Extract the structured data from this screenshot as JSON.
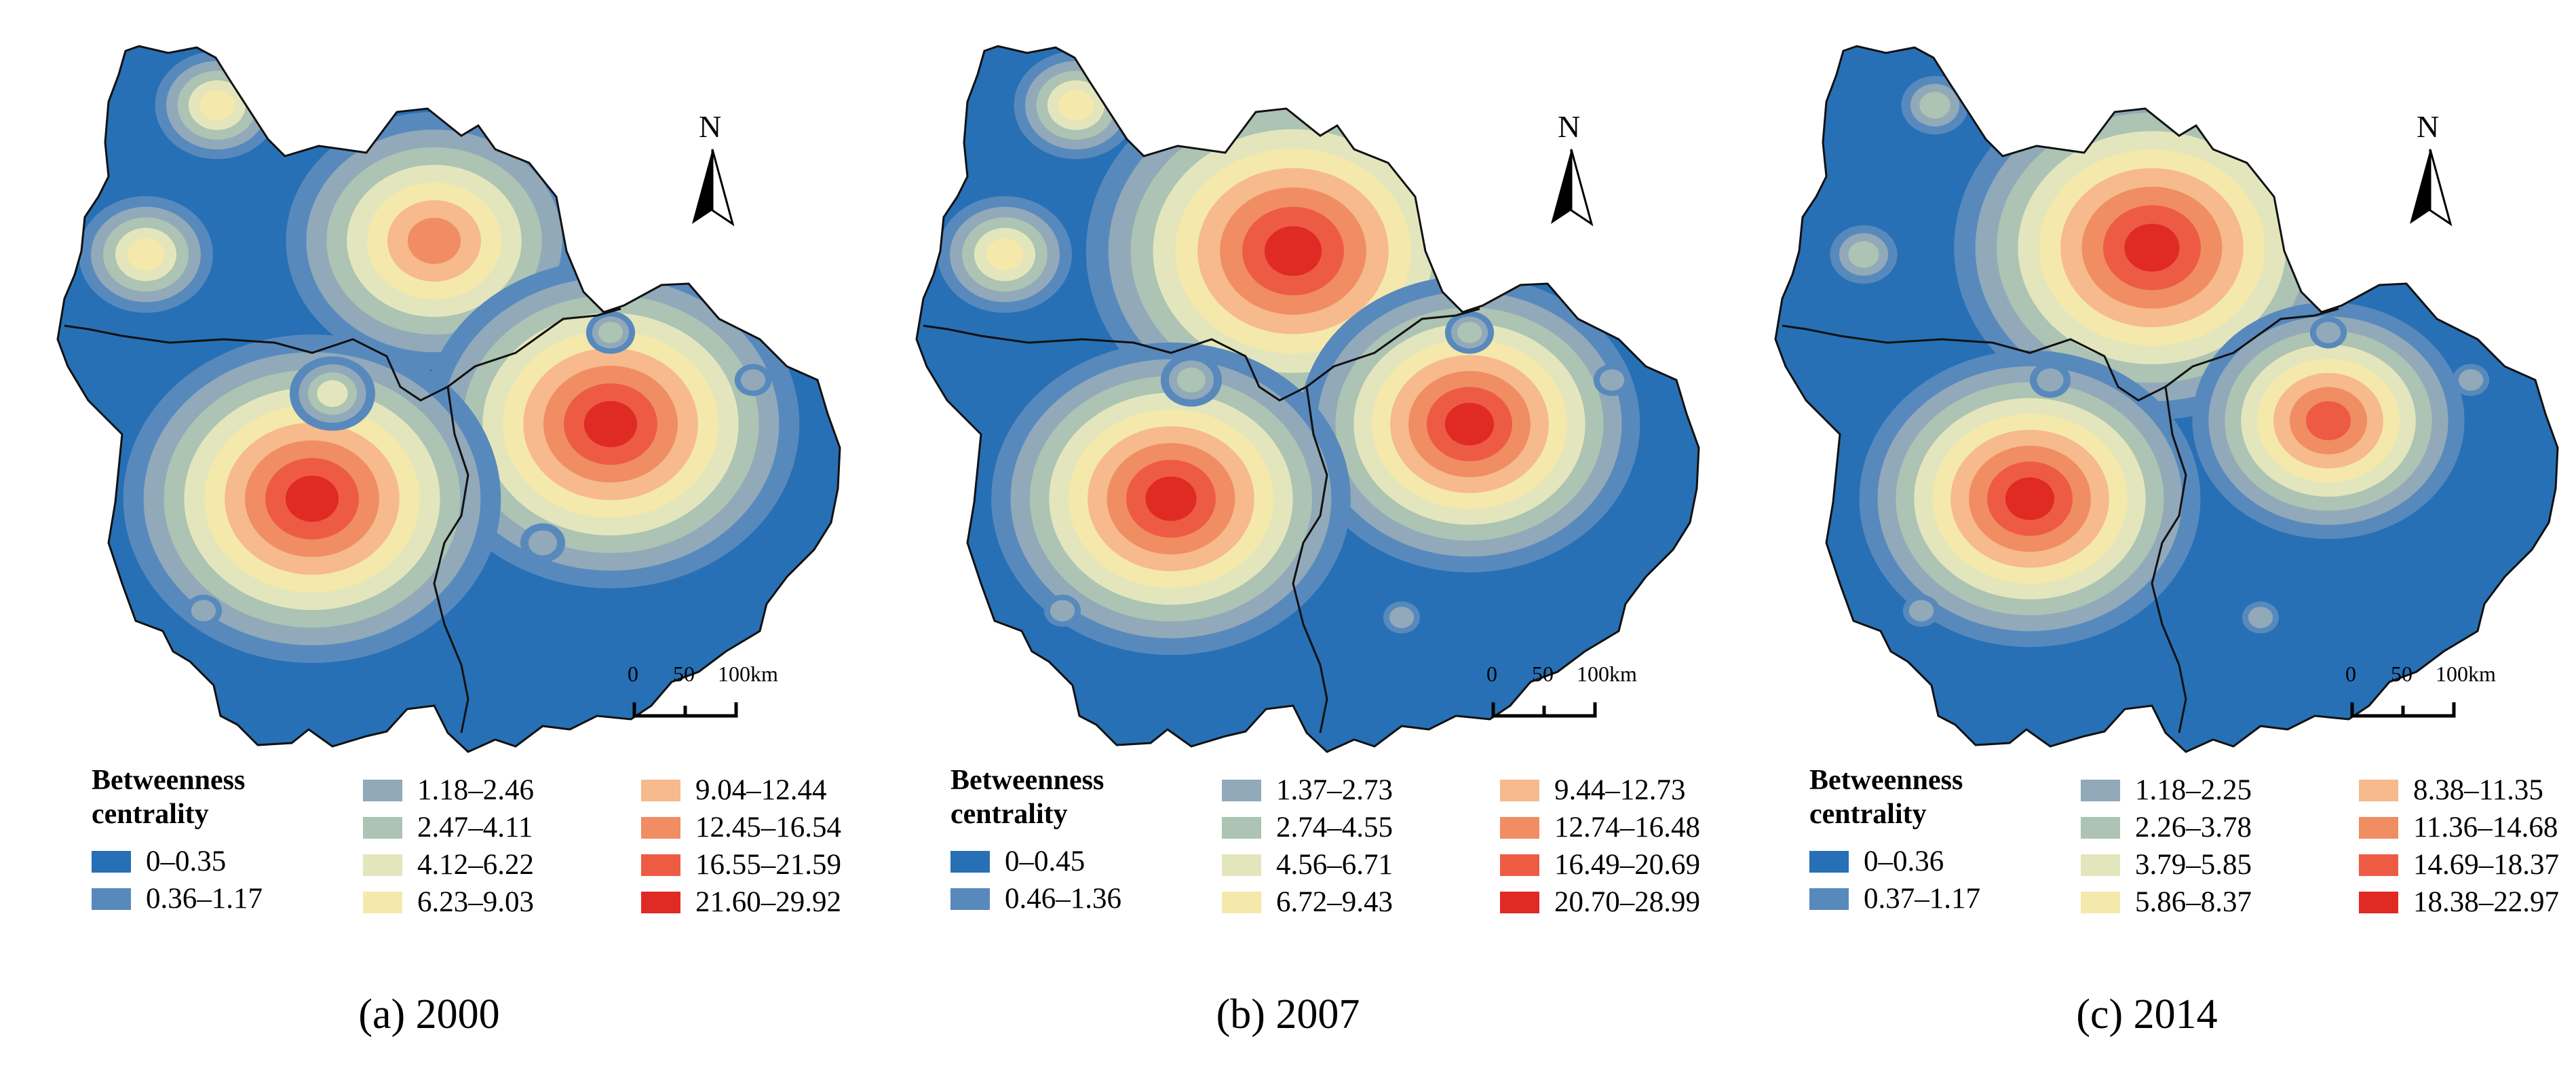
{
  "north_label": "N",
  "legend_title_line1": "Betweenness",
  "legend_title_line2": "centrality",
  "scale_labels": [
    "0",
    "50",
    "100km"
  ],
  "colors": [
    "#2770b5",
    "#5889bd",
    "#91a9b9",
    "#adc3b3",
    "#e3e6bc",
    "#f5e8ab",
    "#f6ba8c",
    "#f08d63",
    "#ee5b44",
    "#e02a24"
  ],
  "panels": [
    {
      "caption": "(a) 2000",
      "classes": [
        "0–0.35",
        "0.36–1.17",
        "1.18–2.46",
        "2.47–4.11",
        "4.12–6.22",
        "6.23–9.03",
        "9.04–12.44",
        "12.45–16.54",
        "16.55–21.59",
        "21.60–29.92"
      ]
    },
    {
      "caption": "(b) 2007",
      "classes": [
        "0–0.45",
        "0.46–1.36",
        "1.37–2.73",
        "2.74–4.55",
        "4.56–6.71",
        "6.72–9.43",
        "9.44–12.73",
        "12.74–16.48",
        "16.49–20.69",
        "20.70–28.99"
      ]
    },
    {
      "caption": "(c) 2014",
      "classes": [
        "0–0.36",
        "0.37–1.17",
        "1.18–2.25",
        "2.26–3.78",
        "3.79–5.85",
        "5.86–8.37",
        "8.38–11.35",
        "11.36–14.68",
        "14.69–18.37",
        "18.38–22.97"
      ]
    }
  ]
}
